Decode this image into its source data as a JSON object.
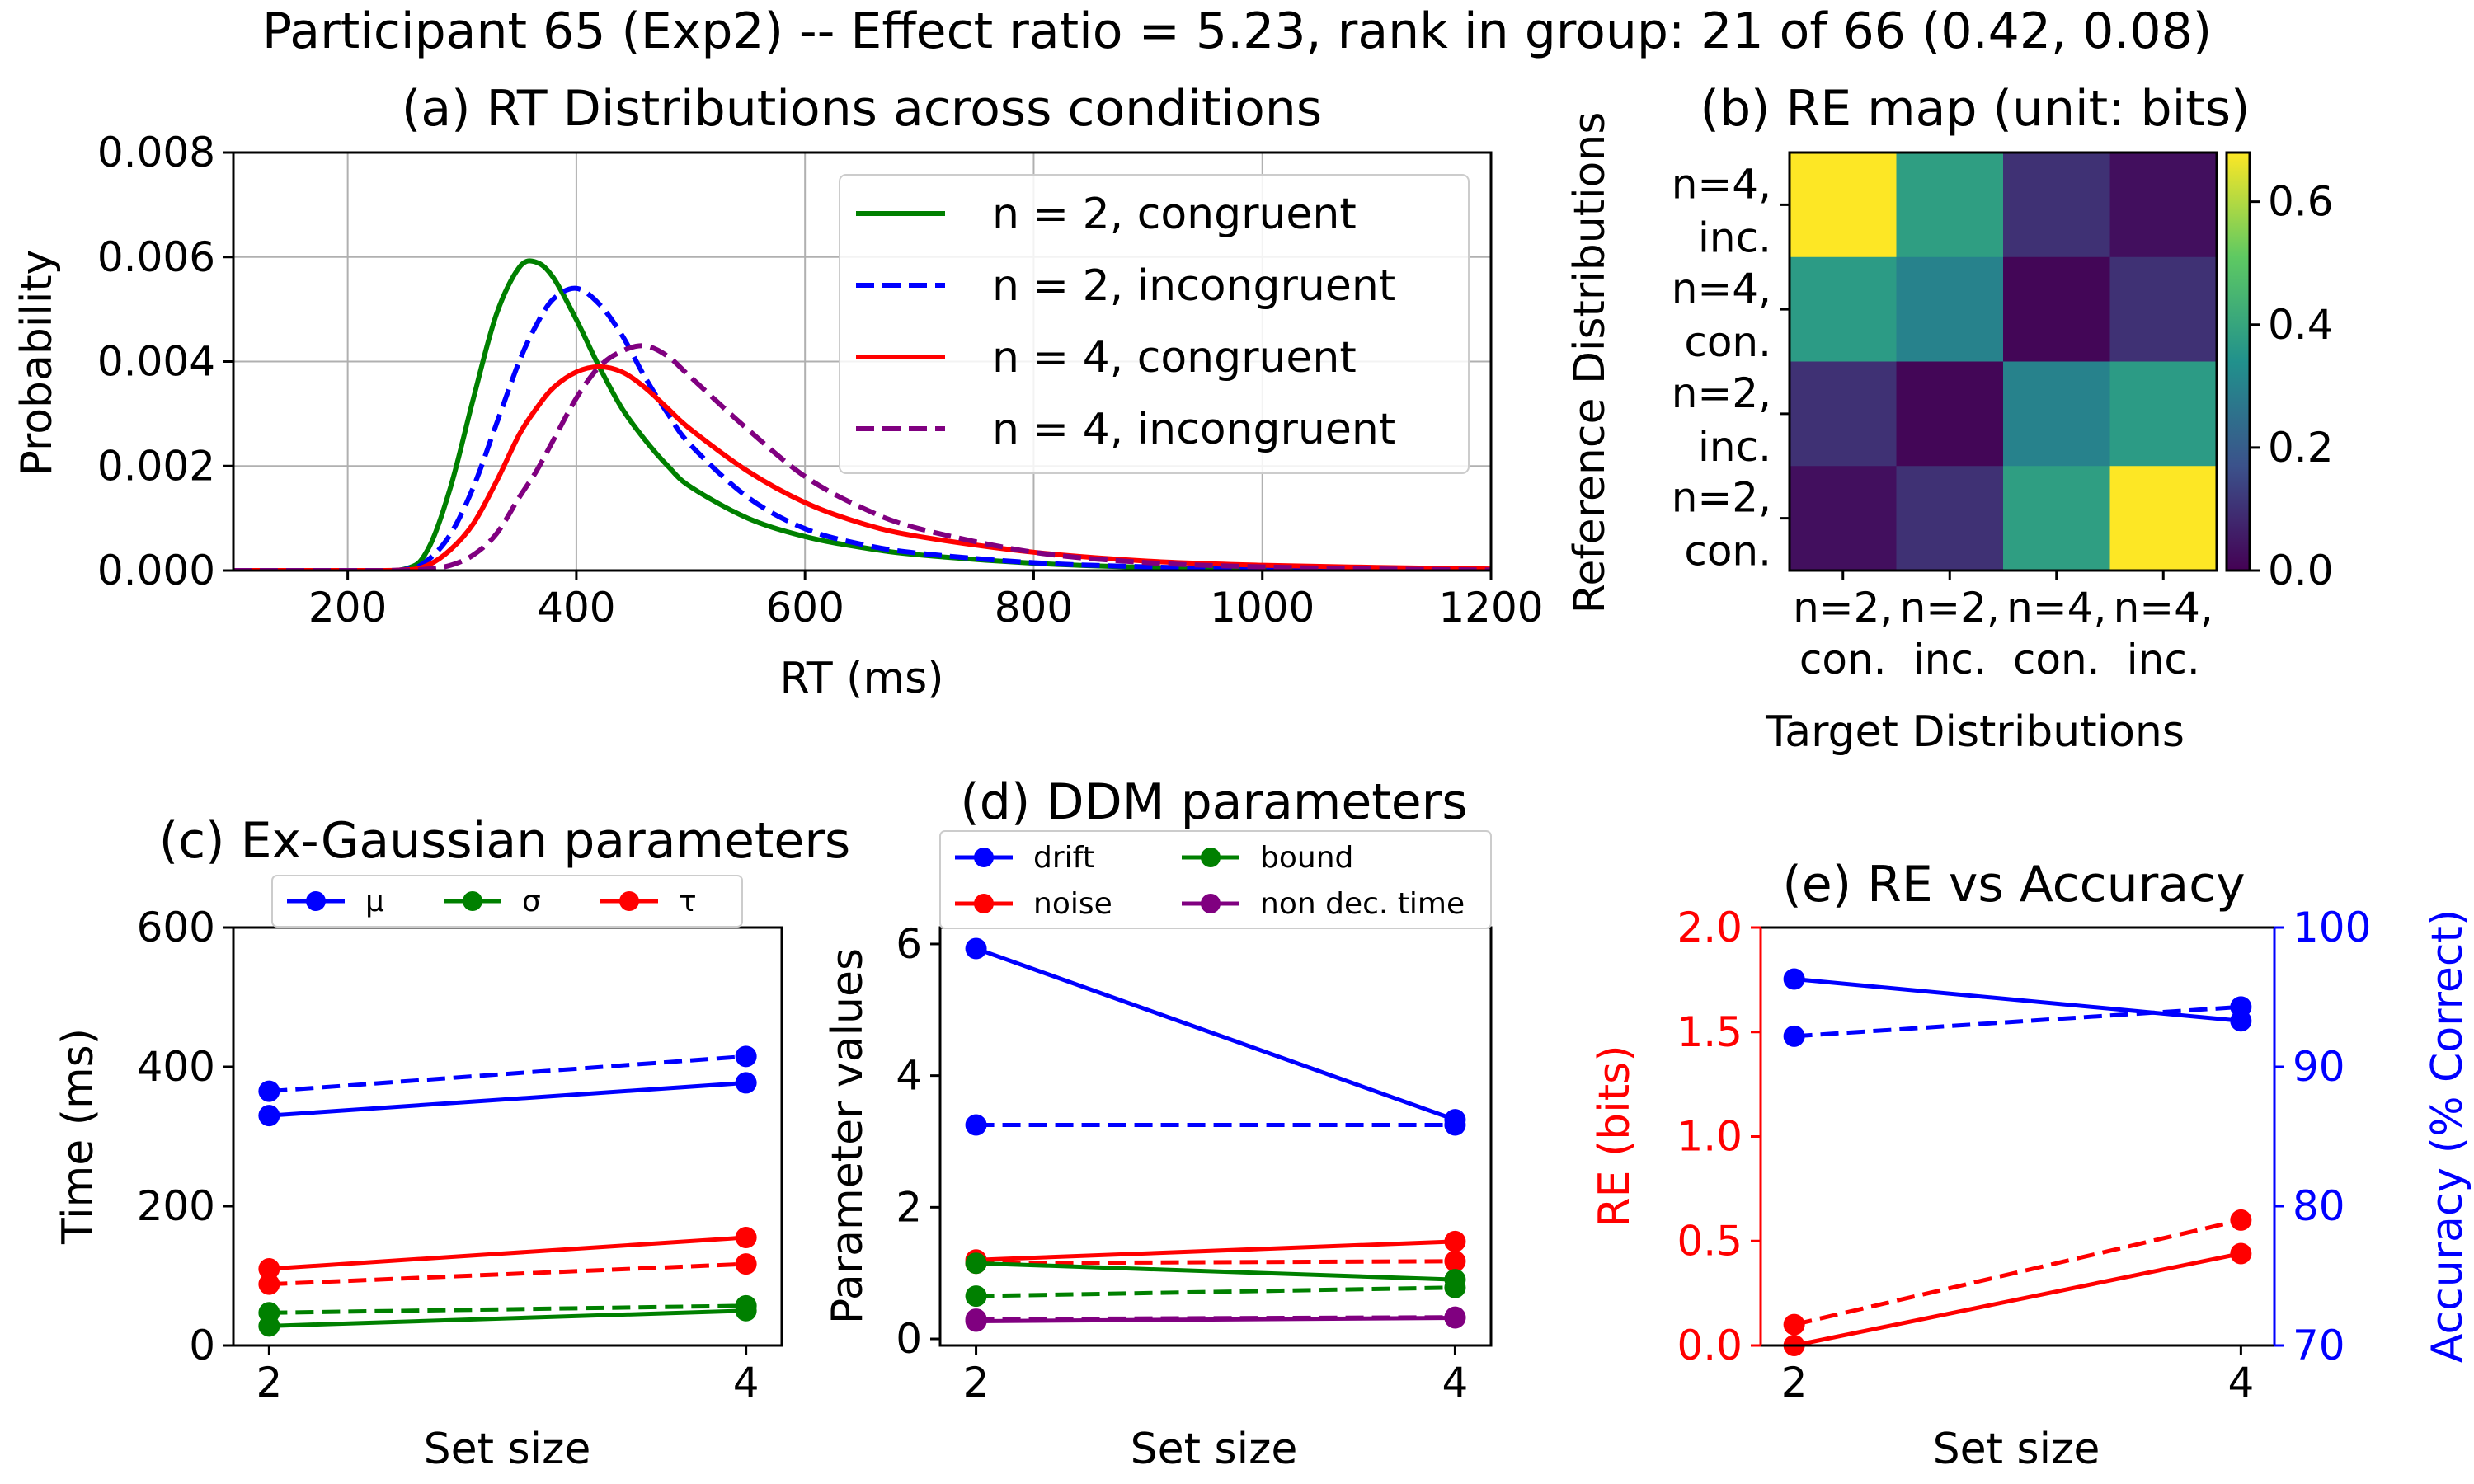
{
  "figure_title": "Participant 65 (Exp2) -- Effect ratio = 5.23, rank in group: 21 of 66 (0.42, 0.08)",
  "colors": {
    "green": "#008000",
    "blue": "#0000ff",
    "red": "#ff0000",
    "purple": "#800080",
    "grid": "#b0b0b0",
    "axis": "#000000"
  },
  "chart_data": [
    {
      "id": "a",
      "type": "line",
      "title": "(a) RT Distributions across conditions",
      "xlabel": "RT (ms)",
      "ylabel": "Probability",
      "xlim": [
        100,
        1200
      ],
      "ylim": [
        0,
        0.008
      ],
      "xticks": [
        "200",
        "400",
        "600",
        "800",
        "1000",
        "1200"
      ],
      "yticks": [
        "0.000",
        "0.002",
        "0.004",
        "0.006",
        "0.008"
      ],
      "grid": true,
      "legend_position": "top-right",
      "x": [
        100,
        200,
        250,
        270,
        290,
        310,
        330,
        350,
        365,
        380,
        400,
        420,
        440,
        460,
        480,
        500,
        550,
        600,
        650,
        700,
        800,
        900,
        1000,
        1100,
        1200
      ],
      "series": [
        {
          "name": "n = 2, congruent",
          "color": "green",
          "style": "solid",
          "values": [
            0,
            0,
            3e-05,
            0.0004,
            0.0016,
            0.0033,
            0.0049,
            0.0058,
            0.0059,
            0.0056,
            0.0048,
            0.0039,
            0.0031,
            0.0025,
            0.002,
            0.0016,
            0.001,
            0.00065,
            0.00044,
            0.0003,
            0.00014,
            6e-05,
            3e-05,
            1e-05,
            0
          ]
        },
        {
          "name": "n = 2, incongruent",
          "color": "blue",
          "style": "dashed",
          "values": [
            0,
            0,
            2e-05,
            0.0002,
            0.0007,
            0.0016,
            0.0028,
            0.004,
            0.0047,
            0.0052,
            0.0054,
            0.0051,
            0.0045,
            0.0037,
            0.003,
            0.0024,
            0.0014,
            0.0008,
            0.0005,
            0.00033,
            0.00015,
            7e-05,
            3e-05,
            1e-05,
            0
          ]
        },
        {
          "name": "n = 4, congruent",
          "color": "red",
          "style": "solid",
          "values": [
            0,
            0,
            1e-05,
            0.0001,
            0.0004,
            0.0009,
            0.0017,
            0.0026,
            0.0031,
            0.0035,
            0.0038,
            0.0039,
            0.0038,
            0.0035,
            0.0031,
            0.0027,
            0.0019,
            0.0013,
            0.0009,
            0.00065,
            0.00035,
            0.00018,
            0.0001,
            6e-05,
            3e-05
          ]
        },
        {
          "name": "n = 4, incongruent",
          "color": "purple",
          "style": "dashed",
          "values": [
            0,
            0,
            0,
            3e-05,
            0.0001,
            0.0003,
            0.0007,
            0.0014,
            0.0019,
            0.0025,
            0.0033,
            0.0039,
            0.0042,
            0.0043,
            0.0041,
            0.0037,
            0.0027,
            0.0018,
            0.0012,
            0.0008,
            0.00035,
            0.00015,
            7e-05,
            3e-05,
            1e-05
          ]
        }
      ]
    },
    {
      "id": "b",
      "type": "heatmap",
      "title": "(b) RE map (unit: bits)",
      "xlabel": "Target Distributions",
      "ylabel": "Reference Distributions",
      "x_labels": [
        [
          "n=2,",
          "con."
        ],
        [
          "n=2,",
          "inc."
        ],
        [
          "n=4,",
          "con."
        ],
        [
          "n=4,",
          "inc."
        ]
      ],
      "y_labels": [
        [
          "n=4,",
          "inc."
        ],
        [
          "n=4,",
          "con."
        ],
        [
          "n=2,",
          "inc."
        ],
        [
          "n=2,",
          "con."
        ]
      ],
      "values": [
        [
          0.68,
          0.38,
          0.1,
          0.03
        ],
        [
          0.37,
          0.3,
          0.01,
          0.1
        ],
        [
          0.1,
          0.01,
          0.3,
          0.37
        ],
        [
          0.03,
          0.1,
          0.38,
          0.68
        ]
      ],
      "colorbar": {
        "min": 0.0,
        "max": 0.68,
        "ticks": [
          "0.0",
          "0.2",
          "0.4",
          "0.6"
        ],
        "colormap": "viridis"
      }
    },
    {
      "id": "c",
      "type": "line",
      "title": "(c) Ex-Gaussian parameters",
      "xlabel": "Set size",
      "ylabel": "Time (ms)",
      "x": [
        2,
        4
      ],
      "xticks": [
        "2",
        "4"
      ],
      "ylim": [
        0,
        600
      ],
      "yticks": [
        "0",
        "200",
        "400",
        "600"
      ],
      "legend_position": "top-center",
      "legend": [
        {
          "label": "μ",
          "color": "blue"
        },
        {
          "label": "σ",
          "color": "green"
        },
        {
          "label": "τ",
          "color": "red"
        }
      ],
      "series": [
        {
          "color": "blue",
          "style": "solid",
          "values": [
            330,
            377
          ]
        },
        {
          "color": "blue",
          "style": "dashed",
          "values": [
            365,
            415
          ]
        },
        {
          "color": "red",
          "style": "solid",
          "values": [
            110,
            155
          ]
        },
        {
          "color": "red",
          "style": "dashed",
          "values": [
            88,
            117
          ]
        },
        {
          "color": "green",
          "style": "solid",
          "values": [
            28,
            50
          ]
        },
        {
          "color": "green",
          "style": "dashed",
          "values": [
            47,
            57
          ]
        }
      ]
    },
    {
      "id": "d",
      "type": "line",
      "title": "(d) DDM parameters",
      "xlabel": "Set size",
      "ylabel": "Parameter values",
      "x": [
        2,
        4
      ],
      "xticks": [
        "2",
        "4"
      ],
      "ylim": [
        -0.1,
        6.25
      ],
      "yticks": [
        "0",
        "2",
        "4",
        "6"
      ],
      "legend_position": "top",
      "legend": [
        {
          "label": "drift",
          "color": "blue"
        },
        {
          "label": "noise",
          "color": "red"
        },
        {
          "label": "bound",
          "color": "green"
        },
        {
          "label": "non dec. time",
          "color": "purple"
        }
      ],
      "series": [
        {
          "color": "blue",
          "style": "solid",
          "values": [
            5.93,
            3.33
          ]
        },
        {
          "color": "blue",
          "style": "dashed",
          "values": [
            3.25,
            3.25
          ]
        },
        {
          "color": "red",
          "style": "solid",
          "values": [
            1.2,
            1.48
          ]
        },
        {
          "color": "red",
          "style": "dashed",
          "values": [
            1.15,
            1.18
          ]
        },
        {
          "color": "green",
          "style": "solid",
          "values": [
            1.15,
            0.9
          ]
        },
        {
          "color": "green",
          "style": "dashed",
          "values": [
            0.65,
            0.78
          ]
        },
        {
          "color": "purple",
          "style": "solid",
          "values": [
            0.27,
            0.32
          ]
        },
        {
          "color": "purple",
          "style": "dashed",
          "values": [
            0.3,
            0.33
          ]
        }
      ]
    },
    {
      "id": "e",
      "type": "line",
      "title": "(e) RE vs Accuracy",
      "xlabel": "Set size",
      "ylabel": "RE (bits)",
      "ylabel_right": "Accuracy (% Correct)",
      "x": [
        2,
        4
      ],
      "xticks": [
        "2",
        "4"
      ],
      "ylim": [
        0,
        2.0
      ],
      "yticks": [
        "0.0",
        "0.5",
        "1.0",
        "1.5",
        "2.0"
      ],
      "ylim_right": [
        70,
        100
      ],
      "yticks_right": [
        "70",
        "80",
        "90",
        "100"
      ],
      "series": [
        {
          "axis": "left",
          "color": "red",
          "style": "solid",
          "values": [
            0.0,
            0.44
          ]
        },
        {
          "axis": "left",
          "color": "red",
          "style": "dashed",
          "values": [
            0.1,
            0.6
          ]
        },
        {
          "axis": "right",
          "color": "blue",
          "style": "solid",
          "values": [
            96.3,
            93.3
          ]
        },
        {
          "axis": "right",
          "color": "blue",
          "style": "dashed",
          "values": [
            92.2,
            94.3
          ]
        }
      ]
    }
  ]
}
